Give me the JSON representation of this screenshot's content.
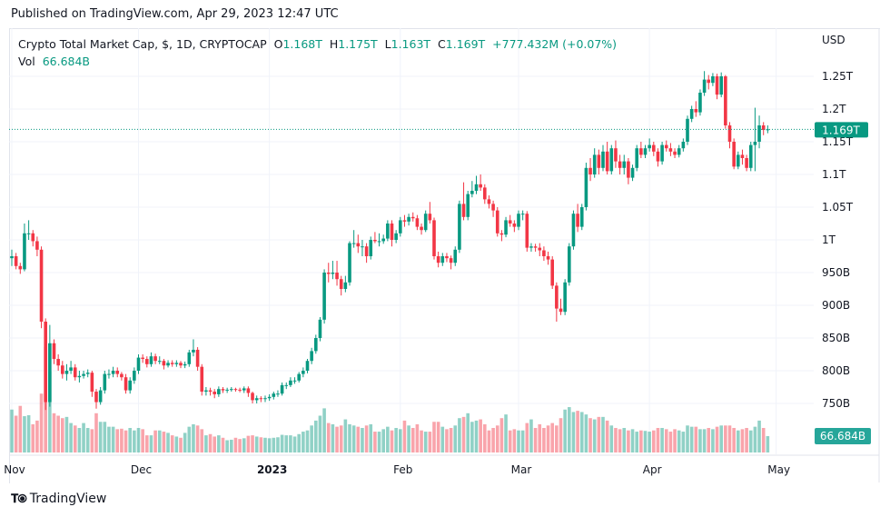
{
  "published": "Published on TradingView.com, Apr 29, 2023 12:47 UTC",
  "legend": {
    "symbol": "Crypto Total Market Cap, $, 1D, CRYPTOCAP",
    "o_label": "O",
    "o": "1.168T",
    "h_label": "H",
    "h": "1.175T",
    "l_label": "L",
    "l": "1.163T",
    "c_label": "C",
    "c": "1.169T",
    "change": "+777.432M (+0.07%)",
    "vol_label": "Vol",
    "vol": "66.684B"
  },
  "footer": {
    "brand": "TradingView"
  },
  "colors": {
    "up": "#089981",
    "down": "#f23645",
    "grid": "#f0f3fa",
    "text": "#131722"
  },
  "chart_data": {
    "type": "candlestick",
    "currency_label": "USD",
    "y_unit": "B",
    "ylim": [
      715,
      1300
    ],
    "grid": true,
    "y_ticks": [
      {
        "value": 1250,
        "label": "1.25T"
      },
      {
        "value": 1200,
        "label": "1.2T"
      },
      {
        "value": 1150,
        "label": "1.15T"
      },
      {
        "value": 1100,
        "label": "1.1T"
      },
      {
        "value": 1050,
        "label": "1.05T"
      },
      {
        "value": 1000,
        "label": "1T"
      },
      {
        "value": 950,
        "label": "950B"
      },
      {
        "value": 900,
        "label": "900B"
      },
      {
        "value": 850,
        "label": "850B"
      },
      {
        "value": 800,
        "label": "800B"
      },
      {
        "value": 750,
        "label": "750B"
      }
    ],
    "x_ticks": [
      {
        "date": "2022-11-01",
        "label": "Nov"
      },
      {
        "date": "2022-12-01",
        "label": "Dec"
      },
      {
        "date": "2023-01-01",
        "label": "2023"
      },
      {
        "date": "2023-02-01",
        "label": "Feb"
      },
      {
        "date": "2023-03-01",
        "label": "Mar"
      },
      {
        "date": "2023-04-01",
        "label": "Apr"
      },
      {
        "date": "2023-05-01",
        "label": "May"
      }
    ],
    "start_date": "2022-11-01",
    "last_price": {
      "value": 1169,
      "label": "1.169T"
    },
    "last_volume": {
      "value": 66.684,
      "label": "66.684B"
    },
    "ohlc": [
      [
        972,
        985,
        960,
        975
      ],
      [
        975,
        980,
        955,
        960
      ],
      [
        960,
        965,
        948,
        955
      ],
      [
        955,
        1025,
        952,
        1010
      ],
      [
        1010,
        1030,
        1000,
        1010
      ],
      [
        1010,
        1015,
        990,
        998
      ],
      [
        998,
        1005,
        975,
        985
      ],
      [
        985,
        990,
        865,
        875
      ],
      [
        875,
        880,
        740,
        752
      ],
      [
        752,
        870,
        745,
        842
      ],
      [
        842,
        848,
        810,
        818
      ],
      [
        818,
        825,
        800,
        808
      ],
      [
        808,
        815,
        788,
        795
      ],
      [
        795,
        810,
        785,
        800
      ],
      [
        800,
        815,
        795,
        805
      ],
      [
        805,
        810,
        785,
        790
      ],
      [
        790,
        800,
        782,
        792
      ],
      [
        792,
        800,
        788,
        795
      ],
      [
        795,
        802,
        790,
        797
      ],
      [
        797,
        800,
        760,
        768
      ],
      [
        768,
        772,
        742,
        752
      ],
      [
        752,
        775,
        748,
        770
      ],
      [
        770,
        800,
        765,
        795
      ],
      [
        795,
        802,
        788,
        795
      ],
      [
        795,
        806,
        790,
        800
      ],
      [
        800,
        805,
        790,
        795
      ],
      [
        795,
        798,
        785,
        790
      ],
      [
        790,
        795,
        765,
        770
      ],
      [
        770,
        790,
        765,
        785
      ],
      [
        785,
        805,
        780,
        800
      ],
      [
        800,
        825,
        795,
        820
      ],
      [
        820,
        825,
        812,
        818
      ],
      [
        818,
        822,
        805,
        810
      ],
      [
        810,
        828,
        806,
        822
      ],
      [
        822,
        826,
        810,
        815
      ],
      [
        815,
        822,
        810,
        815
      ],
      [
        815,
        818,
        802,
        808
      ],
      [
        808,
        816,
        805,
        812
      ],
      [
        812,
        816,
        806,
        810
      ],
      [
        810,
        816,
        806,
        812
      ],
      [
        812,
        815,
        804,
        808
      ],
      [
        808,
        814,
        804,
        810
      ],
      [
        810,
        832,
        806,
        828
      ],
      [
        828,
        848,
        822,
        832
      ],
      [
        832,
        836,
        800,
        806
      ],
      [
        806,
        810,
        762,
        768
      ],
      [
        768,
        775,
        762,
        770
      ],
      [
        770,
        774,
        762,
        768
      ],
      [
        768,
        772,
        758,
        764
      ],
      [
        764,
        776,
        760,
        772
      ],
      [
        772,
        775,
        766,
        770
      ],
      [
        770,
        774,
        766,
        771
      ],
      [
        771,
        775,
        768,
        772
      ],
      [
        772,
        774,
        768,
        771
      ],
      [
        771,
        774,
        767,
        770
      ],
      [
        770,
        776,
        766,
        773
      ],
      [
        773,
        776,
        760,
        766
      ],
      [
        766,
        768,
        750,
        755
      ],
      [
        755,
        762,
        750,
        758
      ],
      [
        758,
        761,
        752,
        757
      ],
      [
        757,
        762,
        752,
        758
      ],
      [
        758,
        764,
        754,
        760
      ],
      [
        760,
        768,
        756,
        765
      ],
      [
        765,
        770,
        760,
        765
      ],
      [
        765,
        782,
        762,
        778
      ],
      [
        778,
        782,
        772,
        778
      ],
      [
        778,
        790,
        775,
        785
      ],
      [
        785,
        790,
        780,
        785
      ],
      [
        785,
        798,
        782,
        795
      ],
      [
        795,
        805,
        790,
        800
      ],
      [
        800,
        818,
        796,
        815
      ],
      [
        815,
        835,
        810,
        830
      ],
      [
        830,
        855,
        826,
        850
      ],
      [
        850,
        882,
        845,
        878
      ],
      [
        878,
        955,
        872,
        950
      ],
      [
        950,
        965,
        935,
        948
      ],
      [
        948,
        968,
        940,
        950
      ],
      [
        950,
        968,
        930,
        940
      ],
      [
        940,
        945,
        915,
        925
      ],
      [
        925,
        945,
        920,
        935
      ],
      [
        935,
        998,
        930,
        995
      ],
      [
        995,
        1015,
        988,
        995
      ],
      [
        995,
        1008,
        980,
        990
      ],
      [
        990,
        1000,
        975,
        990
      ],
      [
        990,
        995,
        965,
        975
      ],
      [
        975,
        1005,
        970,
        1000
      ],
      [
        1000,
        1012,
        995,
        998
      ],
      [
        998,
        1010,
        990,
        998
      ],
      [
        998,
        1008,
        994,
        1002
      ],
      [
        1002,
        1030,
        998,
        1025
      ],
      [
        1025,
        1030,
        990,
        1000
      ],
      [
        1000,
        1015,
        995,
        1010
      ],
      [
        1010,
        1035,
        1005,
        1030
      ],
      [
        1030,
        1038,
        1020,
        1028
      ],
      [
        1028,
        1040,
        1022,
        1035
      ],
      [
        1035,
        1042,
        1028,
        1033
      ],
      [
        1033,
        1038,
        1015,
        1020
      ],
      [
        1020,
        1025,
        1008,
        1015
      ],
      [
        1015,
        1045,
        1012,
        1040
      ],
      [
        1040,
        1058,
        1025,
        1030
      ],
      [
        1030,
        1034,
        970,
        975
      ],
      [
        975,
        982,
        958,
        965
      ],
      [
        965,
        980,
        960,
        975
      ],
      [
        975,
        980,
        966,
        972
      ],
      [
        972,
        976,
        955,
        965
      ],
      [
        965,
        990,
        960,
        985
      ],
      [
        985,
        1060,
        980,
        1055
      ],
      [
        1055,
        1088,
        1030,
        1035
      ],
      [
        1035,
        1075,
        1030,
        1070
      ],
      [
        1070,
        1090,
        1065,
        1075
      ],
      [
        1075,
        1098,
        1070,
        1085
      ],
      [
        1085,
        1100,
        1075,
        1080
      ],
      [
        1080,
        1085,
        1055,
        1062
      ],
      [
        1062,
        1068,
        1048,
        1055
      ],
      [
        1055,
        1060,
        1035,
        1045
      ],
      [
        1045,
        1050,
        1005,
        1010
      ],
      [
        1010,
        1015,
        998,
        1008
      ],
      [
        1008,
        1035,
        1004,
        1030
      ],
      [
        1030,
        1038,
        1020,
        1025
      ],
      [
        1025,
        1030,
        1012,
        1020
      ],
      [
        1020,
        1045,
        1015,
        1040
      ],
      [
        1040,
        1045,
        1030,
        1040
      ],
      [
        1040,
        1044,
        982,
        988
      ],
      [
        988,
        995,
        982,
        990
      ],
      [
        990,
        994,
        982,
        988
      ],
      [
        988,
        995,
        975,
        984
      ],
      [
        984,
        990,
        968,
        975
      ],
      [
        975,
        982,
        962,
        970
      ],
      [
        970,
        975,
        925,
        930
      ],
      [
        930,
        935,
        875,
        895
      ],
      [
        895,
        910,
        885,
        890
      ],
      [
        890,
        940,
        885,
        935
      ],
      [
        935,
        995,
        930,
        990
      ],
      [
        990,
        1045,
        985,
        1040
      ],
      [
        1040,
        1055,
        1012,
        1020
      ],
      [
        1020,
        1055,
        1015,
        1050
      ],
      [
        1050,
        1118,
        1045,
        1110
      ],
      [
        1110,
        1125,
        1090,
        1100
      ],
      [
        1100,
        1140,
        1095,
        1130
      ],
      [
        1130,
        1138,
        1100,
        1110
      ],
      [
        1110,
        1145,
        1105,
        1135
      ],
      [
        1135,
        1150,
        1100,
        1105
      ],
      [
        1105,
        1145,
        1100,
        1140
      ],
      [
        1140,
        1152,
        1110,
        1120
      ],
      [
        1120,
        1130,
        1100,
        1110
      ],
      [
        1110,
        1130,
        1100,
        1120
      ],
      [
        1120,
        1125,
        1085,
        1095
      ],
      [
        1095,
        1115,
        1090,
        1110
      ],
      [
        1110,
        1145,
        1105,
        1140
      ],
      [
        1140,
        1150,
        1125,
        1130
      ],
      [
        1130,
        1145,
        1125,
        1140
      ],
      [
        1140,
        1155,
        1135,
        1145
      ],
      [
        1145,
        1150,
        1128,
        1135
      ],
      [
        1135,
        1140,
        1112,
        1120
      ],
      [
        1120,
        1150,
        1115,
        1145
      ],
      [
        1145,
        1152,
        1135,
        1140
      ],
      [
        1140,
        1148,
        1128,
        1135
      ],
      [
        1135,
        1140,
        1125,
        1130
      ],
      [
        1130,
        1145,
        1126,
        1140
      ],
      [
        1140,
        1155,
        1135,
        1150
      ],
      [
        1150,
        1190,
        1145,
        1185
      ],
      [
        1185,
        1205,
        1180,
        1200
      ],
      [
        1200,
        1212,
        1188,
        1195
      ],
      [
        1195,
        1230,
        1190,
        1225
      ],
      [
        1225,
        1258,
        1220,
        1245
      ],
      [
        1245,
        1252,
        1230,
        1240
      ],
      [
        1240,
        1255,
        1235,
        1250
      ],
      [
        1250,
        1254,
        1215,
        1222
      ],
      [
        1222,
        1256,
        1218,
        1250
      ],
      [
        1250,
        1252,
        1170,
        1175
      ],
      [
        1175,
        1180,
        1140,
        1150
      ],
      [
        1150,
        1155,
        1108,
        1112
      ],
      [
        1112,
        1135,
        1108,
        1130
      ],
      [
        1130,
        1138,
        1115,
        1125
      ],
      [
        1125,
        1130,
        1105,
        1110
      ],
      [
        1110,
        1150,
        1105,
        1145
      ],
      [
        1145,
        1202,
        1105,
        1150
      ],
      [
        1150,
        1190,
        1140,
        1175
      ],
      [
        1175,
        1180,
        1160,
        1168
      ],
      [
        1168,
        1175,
        1163,
        1169
      ]
    ],
    "volume": [
      175,
      150,
      190,
      148,
      152,
      115,
      130,
      240,
      430,
      330,
      160,
      150,
      140,
      145,
      120,
      110,
      100,
      120,
      100,
      95,
      160,
      125,
      125,
      105,
      105,
      95,
      97,
      90,
      100,
      90,
      100,
      95,
      70,
      70,
      90,
      90,
      85,
      80,
      70,
      65,
      60,
      80,
      105,
      115,
      110,
      95,
      70,
      75,
      65,
      70,
      60,
      50,
      52,
      60,
      55,
      58,
      68,
      70,
      65,
      62,
      60,
      58,
      60,
      62,
      72,
      70,
      70,
      65,
      75,
      85,
      90,
      110,
      130,
      150,
      180,
      120,
      115,
      105,
      110,
      135,
      115,
      110,
      105,
      100,
      110,
      115,
      85,
      85,
      95,
      105,
      90,
      100,
      95,
      130,
      110,
      100,
      115,
      90,
      85,
      85,
      125,
      125,
      105,
      95,
      100,
      110,
      140,
      145,
      160,
      125,
      130,
      135,
      115,
      90,
      100,
      110,
      140,
      155,
      90,
      95,
      90,
      90,
      120,
      135,
      100,
      115,
      100,
      110,
      120,
      110,
      140,
      175,
      185,
      165,
      170,
      165,
      155,
      140,
      135,
      145,
      145,
      130,
      110,
      100,
      95,
      100,
      90,
      95,
      85,
      90,
      88,
      85,
      90,
      100,
      100,
      95,
      85,
      95,
      90,
      85,
      110,
      105,
      105,
      95,
      95,
      100,
      95,
      105,
      110,
      110,
      110,
      100,
      90,
      95,
      100,
      90,
      105,
      130,
      100,
      66.684
    ]
  }
}
